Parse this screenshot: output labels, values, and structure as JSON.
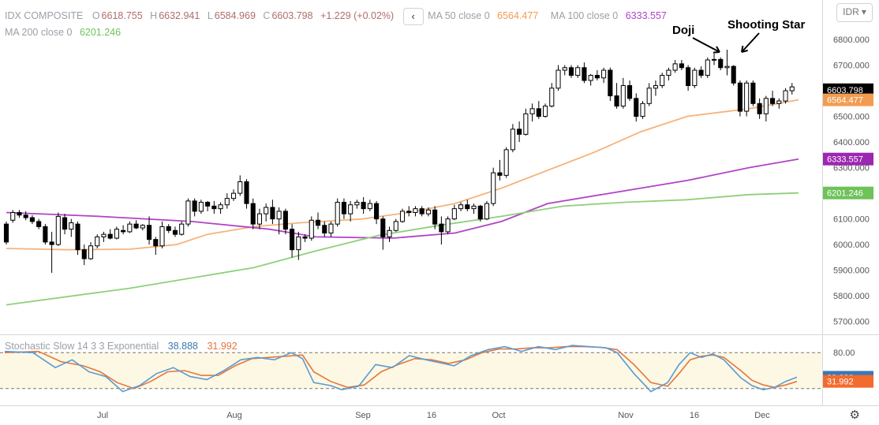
{
  "header": {
    "symbol": "IDX COMPOSITE",
    "open": "6618.755",
    "high": "6632.941",
    "low": "6584.969",
    "close": "6603.798",
    "change": "+1.229 (+0.02%)",
    "ma50_label": "MA 50 close 0",
    "ma50_value": "6564.477",
    "ma100_label": "MA 100 close 0",
    "ma100_value": "6333.557",
    "ma200_label": "MA 200 close 0",
    "ma200_value": "6201.246",
    "nav_icon": "chevron-left-icon",
    "currency": "IDR"
  },
  "stoch_legend": {
    "label": "Stochastic Slow 14 3 3 Exponential",
    "k_value": "38.888",
    "d_value": "31.992"
  },
  "chart_data": {
    "type": "candlestick",
    "annotations": [
      "Doji",
      "Shooting Star"
    ],
    "price_axis": {
      "ylim": [
        5650,
        6880
      ],
      "ticks": [
        "5700.000",
        "5800.000",
        "5900.000",
        "6000.000",
        "6100.000",
        "6200.000",
        "6300.000",
        "6400.000",
        "6500.000",
        "6600.000",
        "6700.000",
        "6800.000"
      ]
    },
    "price_labels": [
      {
        "value": 6603.798,
        "text": "6603.798",
        "color": "#000000"
      },
      {
        "value": 6564.477,
        "text": "6564.477",
        "color": "#f29c51"
      },
      {
        "value": 6333.557,
        "text": "6333.557",
        "color": "#9c27b0"
      },
      {
        "value": 6201.246,
        "text": "6201.246",
        "color": "#6ec25a"
      }
    ],
    "x_labels": [
      "Jul",
      "Aug",
      "Sep",
      "16",
      "Oct",
      "Nov",
      "16",
      "Dec"
    ],
    "candles": [
      [
        6080,
        6090,
        6000,
        6010
      ],
      [
        6095,
        6135,
        6085,
        6125
      ],
      [
        6125,
        6135,
        6105,
        6115
      ],
      [
        6115,
        6130,
        6095,
        6105
      ],
      [
        6105,
        6115,
        6080,
        6090
      ],
      [
        6090,
        6100,
        6060,
        6070
      ],
      [
        6070,
        6080,
        6000,
        6010
      ],
      [
        6010,
        6050,
        5890,
        6000
      ],
      [
        6000,
        6125,
        5995,
        6110
      ],
      [
        6105,
        6120,
        6040,
        6060
      ],
      [
        6060,
        6100,
        6030,
        6085
      ],
      [
        6080,
        6090,
        5960,
        5980
      ],
      [
        5980,
        6000,
        5920,
        5945
      ],
      [
        5945,
        6010,
        5940,
        5995
      ],
      [
        5995,
        6040,
        5985,
        6030
      ],
      [
        6030,
        6050,
        6010,
        6040
      ],
      [
        6040,
        6060,
        6020,
        6025
      ],
      [
        6025,
        6070,
        6020,
        6060
      ],
      [
        6055,
        6075,
        6040,
        6050
      ],
      [
        6050,
        6090,
        6045,
        6080
      ],
      [
        6080,
        6095,
        6060,
        6065
      ],
      [
        6065,
        6080,
        6055,
        6075
      ],
      [
        6075,
        6110,
        6000,
        6020
      ],
      [
        6020,
        6030,
        5960,
        5995
      ],
      [
        5995,
        6090,
        5985,
        6070
      ],
      [
        6070,
        6080,
        6045,
        6055
      ],
      [
        6055,
        6070,
        6030,
        6040
      ],
      [
        6040,
        6090,
        6035,
        6080
      ],
      [
        6080,
        6180,
        6070,
        6170
      ],
      [
        6170,
        6180,
        6110,
        6130
      ],
      [
        6130,
        6175,
        6120,
        6165
      ],
      [
        6165,
        6170,
        6130,
        6150
      ],
      [
        6150,
        6170,
        6120,
        6140
      ],
      [
        6140,
        6165,
        6120,
        6155
      ],
      [
        6155,
        6200,
        6140,
        6180
      ],
      [
        6180,
        6215,
        6170,
        6200
      ],
      [
        6200,
        6270,
        6190,
        6245
      ],
      [
        6245,
        6255,
        6140,
        6160
      ],
      [
        6160,
        6180,
        6060,
        6080
      ],
      [
        6080,
        6140,
        6060,
        6120
      ],
      [
        6120,
        6160,
        6090,
        6145
      ],
      [
        6145,
        6175,
        6080,
        6100
      ],
      [
        6100,
        6145,
        6040,
        6130
      ],
      [
        6130,
        6140,
        6040,
        6060
      ],
      [
        6060,
        6080,
        5950,
        5980
      ],
      [
        5980,
        6050,
        5940,
        6030
      ],
      [
        6030,
        6040,
        6010,
        6025
      ],
      [
        6025,
        6110,
        6015,
        6095
      ],
      [
        6095,
        6125,
        6060,
        6075
      ],
      [
        6075,
        6090,
        6030,
        6045
      ],
      [
        6045,
        6090,
        6030,
        6080
      ],
      [
        6080,
        6180,
        6070,
        6165
      ],
      [
        6165,
        6180,
        6100,
        6120
      ],
      [
        6120,
        6170,
        6090,
        6155
      ],
      [
        6155,
        6175,
        6140,
        6165
      ],
      [
        6165,
        6185,
        6120,
        6140
      ],
      [
        6140,
        6175,
        6130,
        6160
      ],
      [
        6160,
        6170,
        6080,
        6100
      ],
      [
        6100,
        6110,
        5980,
        6030
      ],
      [
        6030,
        6070,
        6010,
        6055
      ],
      [
        6055,
        6100,
        6050,
        6090
      ],
      [
        6090,
        6140,
        6085,
        6130
      ],
      [
        6130,
        6150,
        6110,
        6125
      ],
      [
        6125,
        6150,
        6110,
        6140
      ],
      [
        6140,
        6150,
        6110,
        6120
      ],
      [
        6120,
        6145,
        6110,
        6135
      ],
      [
        6135,
        6150,
        6060,
        6080
      ],
      [
        6080,
        6110,
        6000,
        6050
      ],
      [
        6050,
        6110,
        6040,
        6100
      ],
      [
        6100,
        6155,
        6095,
        6140
      ],
      [
        6140,
        6165,
        6130,
        6155
      ],
      [
        6155,
        6175,
        6130,
        6140
      ],
      [
        6140,
        6160,
        6120,
        6150
      ],
      [
        6150,
        6155,
        6090,
        6100
      ],
      [
        6100,
        6170,
        6095,
        6160
      ],
      [
        6160,
        6300,
        6150,
        6280
      ],
      [
        6280,
        6330,
        6250,
        6270
      ],
      [
        6270,
        6380,
        6260,
        6370
      ],
      [
        6370,
        6470,
        6360,
        6450
      ],
      [
        6450,
        6480,
        6400,
        6430
      ],
      [
        6430,
        6530,
        6425,
        6510
      ],
      [
        6510,
        6550,
        6480,
        6530
      ],
      [
        6530,
        6560,
        6490,
        6500
      ],
      [
        6500,
        6550,
        6495,
        6540
      ],
      [
        6540,
        6630,
        6535,
        6610
      ],
      [
        6610,
        6700,
        6600,
        6680
      ],
      [
        6680,
        6700,
        6660,
        6690
      ],
      [
        6690,
        6700,
        6650,
        6660
      ],
      [
        6660,
        6700,
        6650,
        6690
      ],
      [
        6690,
        6710,
        6630,
        6640
      ],
      [
        6640,
        6665,
        6620,
        6660
      ],
      [
        6660,
        6680,
        6640,
        6650
      ],
      [
        6650,
        6690,
        6630,
        6680
      ],
      [
        6680,
        6690,
        6560,
        6580
      ],
      [
        6580,
        6630,
        6530,
        6540
      ],
      [
        6540,
        6650,
        6530,
        6620
      ],
      [
        6620,
        6640,
        6560,
        6570
      ],
      [
        6570,
        6590,
        6480,
        6500
      ],
      [
        6500,
        6560,
        6490,
        6550
      ],
      [
        6550,
        6630,
        6540,
        6610
      ],
      [
        6610,
        6640,
        6580,
        6620
      ],
      [
        6620,
        6670,
        6610,
        6660
      ],
      [
        6660,
        6690,
        6640,
        6680
      ],
      [
        6680,
        6720,
        6670,
        6705
      ],
      [
        6705,
        6720,
        6680,
        6690
      ],
      [
        6690,
        6700,
        6600,
        6620
      ],
      [
        6620,
        6690,
        6610,
        6680
      ],
      [
        6680,
        6695,
        6650,
        6660
      ],
      [
        6660,
        6730,
        6650,
        6720
      ],
      [
        6720,
        6745,
        6700,
        6722
      ],
      [
        6722,
        6730,
        6680,
        6690
      ],
      [
        6690,
        6760,
        6660,
        6695
      ],
      [
        6695,
        6700,
        6620,
        6630
      ],
      [
        6630,
        6640,
        6500,
        6520
      ],
      [
        6520,
        6640,
        6500,
        6630
      ],
      [
        6630,
        6640,
        6540,
        6550
      ],
      [
        6550,
        6570,
        6490,
        6510
      ],
      [
        6510,
        6580,
        6480,
        6570
      ],
      [
        6570,
        6600,
        6540,
        6550
      ],
      [
        6550,
        6570,
        6530,
        6560
      ],
      [
        6560,
        6610,
        6550,
        6600
      ],
      [
        6600,
        6630,
        6585,
        6615
      ]
    ],
    "ma_lines": [
      {
        "name": "MA 50",
        "color": "#f5b37d",
        "values": [
          [
            0,
            5985
          ],
          [
            20,
            5980
          ],
          [
            40,
            5982
          ],
          [
            55,
            6000
          ],
          [
            65,
            6040
          ],
          [
            80,
            6070
          ],
          [
            95,
            6085
          ],
          [
            115,
            6100
          ],
          [
            130,
            6125
          ],
          [
            145,
            6160
          ],
          [
            160,
            6220
          ],
          [
            175,
            6290
          ],
          [
            190,
            6360
          ],
          [
            205,
            6440
          ],
          [
            220,
            6500
          ],
          [
            240,
            6530
          ],
          [
            256,
            6564.477
          ]
        ]
      },
      {
        "name": "MA 100",
        "color": "#b044c6",
        "values": [
          [
            0,
            6125
          ],
          [
            30,
            6110
          ],
          [
            60,
            6090
          ],
          [
            85,
            6060
          ],
          [
            100,
            6030
          ],
          [
            125,
            6025
          ],
          [
            145,
            6045
          ],
          [
            160,
            6090
          ],
          [
            175,
            6160
          ],
          [
            195,
            6200
          ],
          [
            220,
            6250
          ],
          [
            240,
            6300
          ],
          [
            256,
            6333.557
          ]
        ]
      },
      {
        "name": "MA 200",
        "color": "#8ed07b",
        "values": [
          [
            0,
            5765
          ],
          [
            40,
            5830
          ],
          [
            80,
            5910
          ],
          [
            100,
            5975
          ],
          [
            120,
            6035
          ],
          [
            140,
            6075
          ],
          [
            160,
            6110
          ],
          [
            180,
            6150
          ],
          [
            200,
            6165
          ],
          [
            220,
            6175
          ],
          [
            240,
            6195
          ],
          [
            256,
            6201.246
          ]
        ]
      }
    ],
    "stochastic": {
      "ylim": [
        0,
        100
      ],
      "levels": [
        80,
        20
      ],
      "level_labels": [
        "80.00"
      ],
      "k_color": "#5b9bd5",
      "d_color": "#e3773e",
      "k_points": [
        [
          0,
          82
        ],
        [
          10,
          80
        ],
        [
          18,
          55
        ],
        [
          24,
          68
        ],
        [
          30,
          48
        ],
        [
          36,
          40
        ],
        [
          42,
          15
        ],
        [
          48,
          25
        ],
        [
          54,
          45
        ],
        [
          60,
          55
        ],
        [
          66,
          40
        ],
        [
          72,
          35
        ],
        [
          78,
          50
        ],
        [
          84,
          68
        ],
        [
          90,
          72
        ],
        [
          96,
          68
        ],
        [
          102,
          80
        ],
        [
          106,
          70
        ],
        [
          110,
          30
        ],
        [
          116,
          25
        ],
        [
          120,
          18
        ],
        [
          126,
          24
        ],
        [
          132,
          60
        ],
        [
          138,
          55
        ],
        [
          144,
          75
        ],
        [
          150,
          68
        ],
        [
          156,
          62
        ],
        [
          160,
          58
        ],
        [
          166,
          75
        ],
        [
          172,
          85
        ],
        [
          178,
          90
        ],
        [
          184,
          82
        ],
        [
          190,
          90
        ],
        [
          196,
          85
        ],
        [
          202,
          92
        ],
        [
          208,
          90
        ],
        [
          214,
          88
        ],
        [
          218,
          80
        ],
        [
          224,
          45
        ],
        [
          230,
          15
        ],
        [
          236,
          30
        ],
        [
          240,
          60
        ],
        [
          244,
          80
        ],
        [
          248,
          72
        ],
        [
          252,
          78
        ],
        [
          256,
          68
        ],
        [
          262,
          38
        ],
        [
          266,
          25
        ],
        [
          270,
          18
        ],
        [
          274,
          22
        ],
        [
          278,
          32
        ],
        [
          282,
          38.888
        ]
      ],
      "d_points": [
        [
          0,
          80
        ],
        [
          12,
          82
        ],
        [
          20,
          65
        ],
        [
          28,
          58
        ],
        [
          34,
          48
        ],
        [
          40,
          30
        ],
        [
          46,
          20
        ],
        [
          52,
          32
        ],
        [
          58,
          48
        ],
        [
          64,
          50
        ],
        [
          70,
          42
        ],
        [
          76,
          42
        ],
        [
          82,
          58
        ],
        [
          88,
          70
        ],
        [
          94,
          72
        ],
        [
          100,
          74
        ],
        [
          106,
          76
        ],
        [
          110,
          48
        ],
        [
          116,
          32
        ],
        [
          122,
          22
        ],
        [
          128,
          26
        ],
        [
          134,
          48
        ],
        [
          140,
          60
        ],
        [
          146,
          70
        ],
        [
          152,
          68
        ],
        [
          158,
          62
        ],
        [
          164,
          68
        ],
        [
          170,
          80
        ],
        [
          176,
          86
        ],
        [
          182,
          86
        ],
        [
          188,
          88
        ],
        [
          194,
          88
        ],
        [
          200,
          90
        ],
        [
          206,
          90
        ],
        [
          212,
          89
        ],
        [
          218,
          85
        ],
        [
          224,
          60
        ],
        [
          230,
          30
        ],
        [
          236,
          24
        ],
        [
          240,
          45
        ],
        [
          244,
          68
        ],
        [
          248,
          74
        ],
        [
          252,
          76
        ],
        [
          256,
          72
        ],
        [
          262,
          50
        ],
        [
          266,
          34
        ],
        [
          270,
          26
        ],
        [
          274,
          22
        ],
        [
          278,
          26
        ],
        [
          282,
          31.992
        ]
      ],
      "labels": [
        {
          "value": 38.888,
          "text": "38.888",
          "color": "#3c78b5"
        },
        {
          "value": 31.992,
          "text": "31.992",
          "color": "#f36b2e"
        }
      ]
    }
  }
}
